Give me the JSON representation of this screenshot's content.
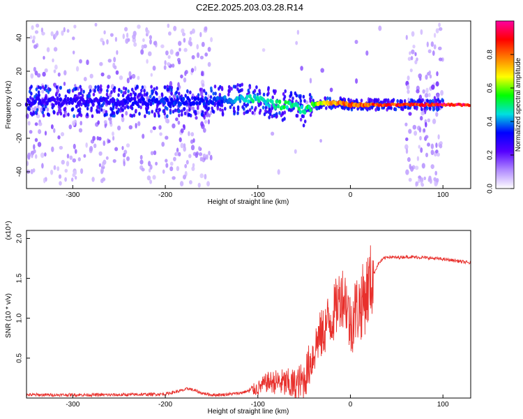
{
  "figure": {
    "title": "C2E2.2025.203.03.28.R14"
  },
  "chart_data": [
    {
      "type": "heatmap",
      "xlabel": "Height of straight line (km)",
      "ylabel": "Frequency (Hz)",
      "xlim": [
        -350,
        130
      ],
      "ylim": [
        -50,
        50
      ],
      "xticks": [
        -300,
        -200,
        -100,
        0,
        100
      ],
      "yticks": [
        -40,
        -20,
        0,
        20,
        40
      ],
      "grid": false,
      "colorbar": {
        "label": "Normalized spectral amplitude",
        "range": [
          0,
          1
        ],
        "ticks": [
          "0.0",
          "0.2",
          "0.4",
          "0.6",
          "0.8"
        ],
        "colors": [
          "#ffffff",
          "#b089ff",
          "#5500ff",
          "#0000ff",
          "#00e0e0",
          "#00ff00",
          "#ffff00",
          "#ff8000",
          "#ff0000",
          "#ff00a0"
        ]
      },
      "carrier": {
        "description_points_x": [
          -350,
          -300,
          -250,
          -200,
          -150,
          -120,
          -100,
          -80,
          -60,
          -50,
          -45,
          -40,
          -30,
          -20,
          -10,
          0,
          20,
          60,
          100,
          130
        ],
        "frequency_y": [
          2,
          2,
          2,
          2,
          2,
          4,
          3,
          0,
          -1,
          -4,
          -2,
          0,
          1,
          1,
          1,
          0,
          0,
          0,
          0,
          0
        ],
        "peak_amplitude": [
          0.3,
          0.3,
          0.3,
          0.35,
          0.35,
          0.45,
          0.5,
          0.5,
          0.55,
          0.5,
          0.55,
          0.6,
          0.7,
          0.8,
          0.8,
          0.85,
          0.85,
          0.9,
          0.95,
          0.95
        ]
      }
    },
    {
      "type": "line",
      "xlabel": "Height of straight line (km)",
      "ylabel": "SNR (10 * v/v)",
      "exponent_label": "(x10⁴)",
      "xlim": [
        -350,
        130
      ],
      "ylim": [
        0,
        2.1
      ],
      "xticks": [
        -300,
        -200,
        -100,
        0,
        100
      ],
      "yticks": [
        "0.5",
        "1.0",
        "1.5",
        "2.0"
      ],
      "grid": false,
      "series": [
        {
          "color": "#e8302c",
          "x": [
            -350,
            -300,
            -250,
            -200,
            -180,
            -175,
            -160,
            -150,
            -140,
            -120,
            -100,
            -90,
            -80,
            -70,
            -60,
            -50,
            -45,
            -40,
            -35,
            -30,
            -25,
            -20,
            -15,
            -10,
            -5,
            0,
            5,
            10,
            15,
            20,
            25,
            30,
            35,
            40,
            50,
            60,
            80,
            100,
            115,
            130
          ],
          "y": [
            0.04,
            0.04,
            0.04,
            0.05,
            0.1,
            0.12,
            0.06,
            0.04,
            0.04,
            0.06,
            0.12,
            0.2,
            0.2,
            0.18,
            0.15,
            0.22,
            0.4,
            0.55,
            0.75,
            0.8,
            0.95,
            1.0,
            1.15,
            1.3,
            1.25,
            0.9,
            1.1,
            1.15,
            1.25,
            1.4,
            1.55,
            1.68,
            1.74,
            1.77,
            1.76,
            1.77,
            1.76,
            1.74,
            1.72,
            1.69
          ]
        }
      ]
    }
  ]
}
